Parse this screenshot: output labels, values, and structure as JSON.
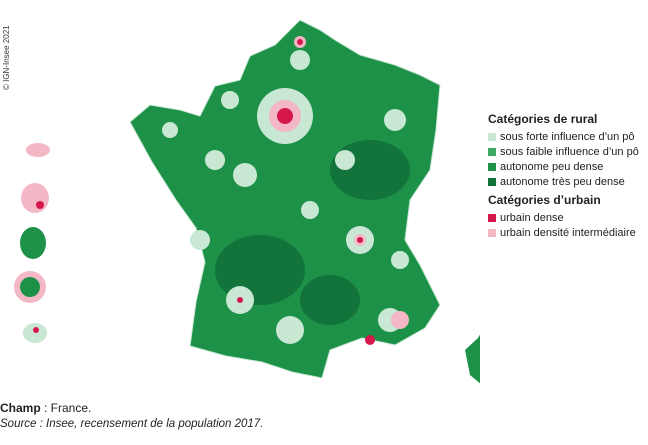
{
  "copyright": "© IGN-Insee 2021",
  "legend": {
    "groups": [
      {
        "title": "Catégories de rural",
        "items": [
          {
            "label": "sous forte influence d’un pô",
            "color": "#c9e8d3"
          },
          {
            "label": "sous faible influence d’un pô",
            "color": "#3daa62"
          },
          {
            "label": "autonome peu dense",
            "color": "#1e9148"
          },
          {
            "label": "autonome très peu dense",
            "color": "#12743a"
          }
        ]
      },
      {
        "title": "Catégories d’urbain",
        "items": [
          {
            "label": "urbain dense",
            "color": "#d6174c"
          },
          {
            "label": "urbain densité intermédiaire",
            "color": "#f3b7c6"
          }
        ]
      }
    ]
  },
  "footer": {
    "field_label": "Champ",
    "field_value": " : France.",
    "source": "Source : Insee, recensement de la population 2017."
  }
}
